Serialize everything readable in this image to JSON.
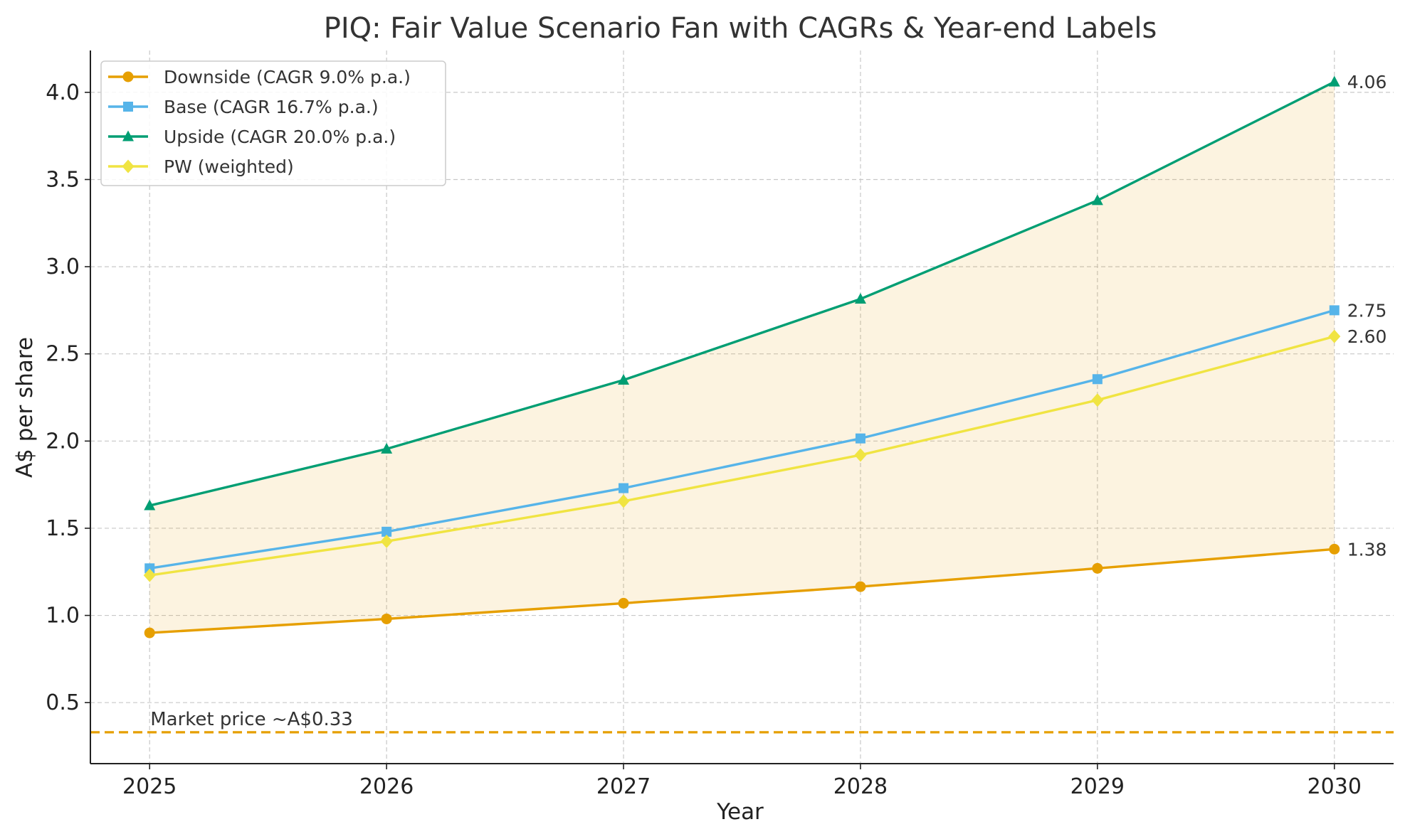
{
  "chart_data": {
    "type": "line",
    "title": "PIQ: Fair Value Scenario Fan with CAGRs & Year-end Labels",
    "xlabel": "Year",
    "ylabel": "A$ per share",
    "x": [
      2025,
      2026,
      2027,
      2028,
      2029,
      2030
    ],
    "x_tick_labels": [
      "2025",
      "2026",
      "2027",
      "2028",
      "2029",
      "2030"
    ],
    "y_ticks": [
      0.5,
      1.0,
      1.5,
      2.0,
      2.5,
      3.0,
      3.5,
      4.0
    ],
    "y_tick_labels": [
      "0.5",
      "1.0",
      "1.5",
      "2.0",
      "2.5",
      "3.0",
      "3.5",
      "4.0"
    ],
    "xlim": [
      2024.75,
      2030.25
    ],
    "ylim": [
      0.15,
      4.24
    ],
    "grid": true,
    "legend_position": "top-left",
    "series": [
      {
        "name": "Downside (CAGR 9.0% p.a.)",
        "color": "#E69F00",
        "marker": "circle",
        "values": [
          0.9,
          0.98,
          1.07,
          1.165,
          1.27,
          1.38
        ],
        "end_label": "1.38"
      },
      {
        "name": "Base (CAGR 16.7% p.a.)",
        "color": "#56B4E9",
        "marker": "square",
        "values": [
          1.27,
          1.48,
          1.73,
          2.015,
          2.355,
          2.75
        ],
        "end_label": "2.75"
      },
      {
        "name": "Upside (CAGR 20.0% p.a.)",
        "color": "#009E73",
        "marker": "triangle",
        "values": [
          1.63,
          1.955,
          2.35,
          2.815,
          3.38,
          4.06
        ],
        "end_label": "4.06"
      },
      {
        "name": "PW (weighted)",
        "color": "#F0E442",
        "marker": "diamond",
        "values": [
          1.23,
          1.425,
          1.655,
          1.92,
          2.235,
          2.6
        ],
        "end_label": "2.60"
      }
    ],
    "band": {
      "lower_series": "Downside (CAGR 9.0% p.a.)",
      "upper_series": "Upside (CAGR 20.0% p.a.)",
      "color": "#E69F00"
    },
    "reference_line": {
      "value": 0.33,
      "label": "Market price ~A$0.33",
      "color": "#E69F00",
      "style": "dashed"
    }
  }
}
